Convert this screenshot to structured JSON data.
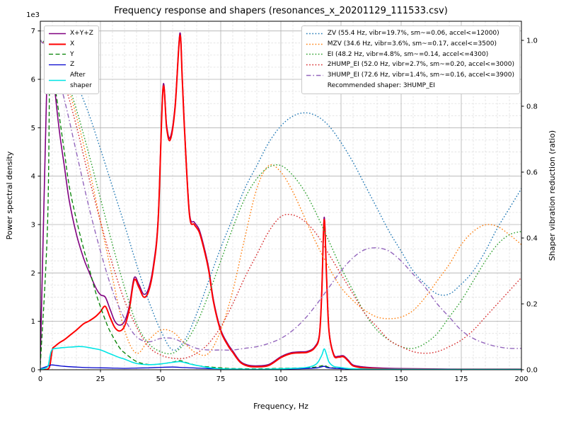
{
  "chart_data": {
    "type": "line",
    "title": "Frequency response and shapers (resonances_x_20201129_111533.csv)",
    "xlabel": "Frequency, Hz",
    "ylabel_left": "Power spectral density",
    "ylabel_right": "Shaper vibration reduction (ratio)",
    "y_left_offset": "1e3",
    "xlim": [
      0,
      200
    ],
    "ylim_left": [
      0,
      7200
    ],
    "ylim_right": [
      0,
      1.058
    ],
    "grid": "major solid grey, minor dashed lightgrey",
    "legend_positions": {
      "psd": "upper left",
      "shapers": "upper right"
    },
    "x_tick_values": [
      0,
      25,
      50,
      75,
      100,
      125,
      150,
      175,
      200
    ],
    "x_tick_labels": [
      "0",
      "25",
      "50",
      "75",
      "100",
      "125",
      "150",
      "175",
      "200"
    ],
    "y_left_tick_values": [
      0,
      1000,
      2000,
      3000,
      4000,
      5000,
      6000,
      7000
    ],
    "y_left_tick_labels": [
      "0",
      "1",
      "2",
      "3",
      "4",
      "5",
      "6",
      "7"
    ],
    "y_right_tick_values": [
      0.0,
      0.2,
      0.4,
      0.6,
      0.8,
      1.0
    ],
    "y_right_tick_labels": [
      "0.0",
      "0.2",
      "0.4",
      "0.6",
      "0.8",
      "1.0"
    ],
    "psd_series": [
      {
        "name": "X+Y+Z",
        "color": "#800080",
        "dash": "solid",
        "width": 1.6,
        "x": [
          0,
          2.5,
          3.5,
          5,
          6,
          8,
          10,
          12,
          15,
          18,
          20,
          23,
          25,
          27,
          29,
          31,
          33,
          35,
          37,
          39,
          41,
          43,
          45,
          47,
          49,
          51,
          52.5,
          54,
          56,
          58,
          59,
          60,
          62,
          64,
          66,
          68,
          70,
          72,
          75,
          78,
          80,
          83,
          86,
          90,
          95,
          100,
          104,
          108,
          111,
          114,
          116,
          117,
          118,
          119,
          120,
          122,
          124,
          126,
          128,
          130,
          134,
          140,
          150,
          170,
          200
        ],
        "y": [
          200,
          5500,
          6950,
          6400,
          5800,
          4900,
          4200,
          3500,
          2800,
          2300,
          2050,
          1700,
          1550,
          1500,
          1250,
          1000,
          920,
          1000,
          1320,
          1900,
          1760,
          1560,
          1680,
          2160,
          3160,
          5850,
          5050,
          4800,
          5450,
          6950,
          6050,
          4950,
          3250,
          3050,
          2900,
          2550,
          2100,
          1440,
          830,
          530,
          390,
          180,
          100,
          80,
          110,
          270,
          350,
          370,
          380,
          470,
          730,
          1630,
          3150,
          1930,
          820,
          320,
          280,
          290,
          200,
          100,
          60,
          40,
          25,
          15,
          15
        ]
      },
      {
        "name": "X",
        "color": "#ff0000",
        "dash": "solid",
        "width": 2,
        "x": [
          0,
          3,
          4,
          5,
          6,
          8,
          10,
          12,
          15,
          18,
          20,
          23,
          25,
          27,
          29,
          31,
          33,
          35,
          37,
          39,
          41,
          43,
          45,
          47,
          49,
          51,
          52.5,
          54,
          56,
          58,
          59,
          60,
          62,
          64,
          66,
          68,
          70,
          72,
          75,
          78,
          80,
          83,
          86,
          90,
          95,
          100,
          104,
          108,
          111,
          114,
          116,
          117,
          118,
          119,
          120,
          122,
          124,
          126,
          128,
          130,
          134,
          140,
          150,
          170,
          200
        ],
        "y": [
          5,
          10,
          100,
          420,
          480,
          560,
          620,
          700,
          820,
          950,
          1000,
          1100,
          1200,
          1310,
          1080,
          870,
          800,
          900,
          1250,
          1850,
          1700,
          1500,
          1620,
          2100,
          3100,
          5800,
          5000,
          4750,
          5400,
          6900,
          6000,
          4900,
          3200,
          3000,
          2850,
          2500,
          2050,
          1400,
          800,
          500,
          360,
          160,
          80,
          60,
          90,
          250,
          330,
          350,
          360,
          450,
          700,
          1600,
          3100,
          1900,
          800,
          300,
          260,
          270,
          180,
          80,
          40,
          20,
          10,
          8,
          8
        ]
      },
      {
        "name": "Y",
        "color": "#008000",
        "dash": "dashed",
        "width": 1.3,
        "x": [
          0,
          3,
          4,
          5,
          6,
          8,
          10,
          12,
          15,
          18,
          20,
          23,
          25,
          28,
          30,
          33,
          35,
          40,
          45,
          50,
          55,
          58,
          60,
          65,
          70,
          75,
          80,
          90,
          100,
          110,
          115,
          118,
          120,
          125,
          130,
          140,
          160,
          200
        ],
        "y": [
          100,
          3000,
          6600,
          6300,
          5900,
          5200,
          4500,
          3800,
          3100,
          2500,
          2150,
          1600,
          1300,
          900,
          700,
          450,
          350,
          170,
          110,
          120,
          160,
          190,
          160,
          90,
          60,
          40,
          25,
          20,
          30,
          40,
          60,
          90,
          50,
          25,
          15,
          10,
          8,
          8
        ]
      },
      {
        "name": "Z",
        "color": "#0000cd",
        "dash": "solid",
        "width": 1.3,
        "x": [
          0,
          4,
          5,
          8,
          10,
          15,
          20,
          25,
          30,
          35,
          40,
          45,
          50,
          55,
          60,
          65,
          70,
          80,
          90,
          100,
          110,
          115,
          118,
          120,
          130,
          150,
          200
        ],
        "y": [
          20,
          90,
          100,
          80,
          70,
          55,
          45,
          40,
          35,
          30,
          35,
          40,
          50,
          55,
          45,
          35,
          25,
          15,
          10,
          15,
          25,
          40,
          70,
          40,
          15,
          8,
          5
        ]
      },
      {
        "name": "After\nshaper",
        "color": "#00e5e5",
        "dash": "solid",
        "width": 1.6,
        "x": [
          0,
          3,
          4,
          5,
          8,
          10,
          13,
          16,
          18,
          20,
          22,
          25,
          28,
          30,
          33,
          35,
          38,
          40,
          43,
          46,
          50,
          53,
          56,
          58,
          60,
          63,
          66,
          70,
          75,
          80,
          90,
          100,
          108,
          112,
          115,
          117,
          118,
          119,
          120,
          122,
          125,
          128,
          132,
          140,
          160,
          200
        ],
        "y": [
          10,
          60,
          280,
          420,
          450,
          460,
          470,
          480,
          475,
          460,
          440,
          410,
          350,
          310,
          250,
          220,
          160,
          130,
          110,
          105,
          120,
          140,
          160,
          170,
          150,
          110,
          80,
          45,
          22,
          15,
          10,
          20,
          35,
          60,
          130,
          300,
          430,
          310,
          160,
          70,
          45,
          25,
          18,
          10,
          8,
          8
        ]
      }
    ],
    "shaper_series": [
      {
        "name": "ZV",
        "label": "ZV (55.4 Hz, vibr=19.7%, sm~=0.06, accel<=12000)",
        "color": "#1f77b4",
        "dash": "dotted",
        "width": 1.4,
        "x": [
          0,
          5,
          10,
          15,
          20,
          25,
          30,
          35,
          40,
          45,
          50,
          55,
          60,
          65,
          70,
          75,
          80,
          85,
          90,
          95,
          100,
          105,
          110,
          115,
          120,
          125,
          130,
          135,
          140,
          145,
          150,
          155,
          160,
          165,
          170,
          175,
          180,
          185,
          190,
          195,
          200
        ],
        "y": [
          1.0,
          0.985,
          0.94,
          0.87,
          0.78,
          0.67,
          0.555,
          0.44,
          0.32,
          0.21,
          0.12,
          0.06,
          0.09,
          0.17,
          0.27,
          0.37,
          0.46,
          0.55,
          0.62,
          0.69,
          0.74,
          0.77,
          0.78,
          0.77,
          0.74,
          0.69,
          0.63,
          0.56,
          0.49,
          0.42,
          0.36,
          0.3,
          0.26,
          0.23,
          0.23,
          0.26,
          0.3,
          0.36,
          0.43,
          0.49,
          0.55
        ]
      },
      {
        "name": "MZV",
        "label": "MZV (34.6 Hz, vibr=3.6%, sm~=0.17, accel<=3500)",
        "color": "#ff7f0e",
        "dash": "dotted",
        "width": 1.4,
        "x": [
          0,
          5,
          10,
          15,
          20,
          25,
          30,
          35,
          40,
          45,
          50,
          55,
          60,
          65,
          70,
          75,
          80,
          85,
          90,
          95,
          100,
          105,
          110,
          115,
          120,
          125,
          130,
          135,
          140,
          145,
          150,
          155,
          160,
          165,
          170,
          175,
          180,
          185,
          190,
          195,
          200
        ],
        "y": [
          1.0,
          0.97,
          0.89,
          0.77,
          0.62,
          0.45,
          0.28,
          0.12,
          0.05,
          0.09,
          0.12,
          0.115,
          0.08,
          0.05,
          0.05,
          0.12,
          0.24,
          0.4,
          0.55,
          0.62,
          0.6,
          0.54,
          0.46,
          0.38,
          0.31,
          0.25,
          0.21,
          0.18,
          0.16,
          0.155,
          0.16,
          0.18,
          0.22,
          0.27,
          0.32,
          0.38,
          0.42,
          0.44,
          0.435,
          0.41,
          0.38
        ]
      },
      {
        "name": "EI",
        "label": "EI (48.2 Hz, vibr=4.8%, sm~=0.14, accel<=4300)",
        "color": "#2ca02c",
        "dash": "dotted",
        "width": 1.4,
        "x": [
          0,
          5,
          10,
          15,
          20,
          25,
          30,
          35,
          40,
          45,
          50,
          55,
          60,
          65,
          70,
          75,
          80,
          85,
          90,
          95,
          100,
          105,
          110,
          115,
          120,
          125,
          130,
          135,
          140,
          145,
          150,
          155,
          160,
          165,
          170,
          175,
          180,
          185,
          190,
          195,
          200
        ],
        "y": [
          1.0,
          0.975,
          0.9,
          0.79,
          0.66,
          0.52,
          0.38,
          0.25,
          0.14,
          0.08,
          0.055,
          0.05,
          0.08,
          0.14,
          0.23,
          0.33,
          0.43,
          0.52,
          0.58,
          0.615,
          0.62,
          0.59,
          0.54,
          0.47,
          0.39,
          0.31,
          0.24,
          0.17,
          0.12,
          0.09,
          0.07,
          0.065,
          0.08,
          0.11,
          0.16,
          0.21,
          0.27,
          0.33,
          0.38,
          0.41,
          0.42
        ]
      },
      {
        "name": "2HUMP_EI",
        "label": "2HUMP_EI (52.0 Hz, vibr=2.7%, sm~=0.20, accel<=3000)",
        "color": "#d62728",
        "dash": "dotted",
        "width": 1.4,
        "x": [
          0,
          5,
          10,
          15,
          20,
          25,
          30,
          35,
          40,
          45,
          50,
          55,
          60,
          65,
          70,
          75,
          80,
          85,
          90,
          95,
          100,
          105,
          110,
          115,
          120,
          125,
          130,
          135,
          140,
          145,
          150,
          155,
          160,
          165,
          170,
          175,
          180,
          185,
          190,
          195,
          200
        ],
        "y": [
          1.0,
          0.965,
          0.87,
          0.74,
          0.59,
          0.45,
          0.32,
          0.21,
          0.13,
          0.07,
          0.045,
          0.035,
          0.035,
          0.05,
          0.08,
          0.13,
          0.2,
          0.28,
          0.35,
          0.42,
          0.465,
          0.47,
          0.45,
          0.41,
          0.35,
          0.29,
          0.23,
          0.17,
          0.13,
          0.09,
          0.07,
          0.055,
          0.05,
          0.055,
          0.07,
          0.09,
          0.12,
          0.16,
          0.2,
          0.24,
          0.28
        ]
      },
      {
        "name": "3HUMP_EI",
        "label": "3HUMP_EI (72.6 Hz, vibr=1.4%, sm~=0.16, accel<=3900)",
        "color": "#9467bd",
        "dash": "dashdot",
        "width": 1.4,
        "x": [
          0,
          5,
          10,
          15,
          20,
          25,
          30,
          35,
          40,
          45,
          50,
          55,
          60,
          65,
          70,
          75,
          80,
          85,
          90,
          95,
          100,
          105,
          110,
          115,
          120,
          125,
          130,
          135,
          140,
          145,
          150,
          155,
          160,
          165,
          170,
          175,
          180,
          185,
          190,
          195,
          200
        ],
        "y": [
          1.0,
          0.95,
          0.82,
          0.66,
          0.5,
          0.36,
          0.24,
          0.155,
          0.1,
          0.085,
          0.095,
          0.095,
          0.08,
          0.065,
          0.06,
          0.06,
          0.06,
          0.065,
          0.07,
          0.08,
          0.095,
          0.12,
          0.155,
          0.2,
          0.25,
          0.3,
          0.34,
          0.365,
          0.37,
          0.36,
          0.33,
          0.29,
          0.25,
          0.2,
          0.16,
          0.12,
          0.095,
          0.08,
          0.07,
          0.065,
          0.065
        ]
      }
    ],
    "legend_note": "Recommended shaper: 3HUMP_EI"
  }
}
